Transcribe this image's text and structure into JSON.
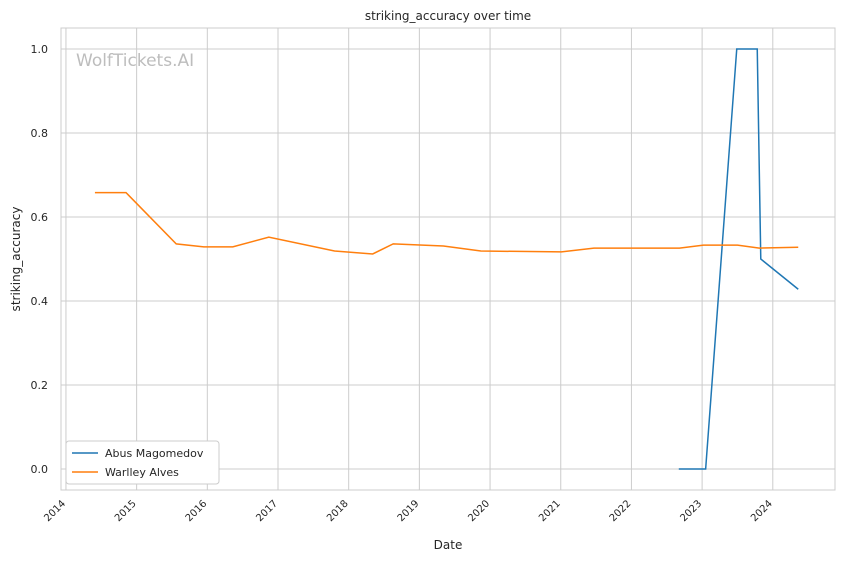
{
  "chart_data": {
    "type": "line",
    "title": "striking_accuracy over time",
    "xlabel": "Date",
    "ylabel": "striking_accuracy",
    "watermark": "WolfTickets.AI",
    "xlim": [
      2013.93,
      2024.88
    ],
    "ylim": [
      -0.05,
      1.05
    ],
    "xticks": [
      "2014",
      "2015",
      "2016",
      "2017",
      "2018",
      "2019",
      "2020",
      "2021",
      "2022",
      "2023",
      "2024"
    ],
    "yticks": [
      "0.0",
      "0.2",
      "0.4",
      "0.6",
      "0.8",
      "1.0"
    ],
    "grid": true,
    "legend_position": "bottom-left",
    "series": [
      {
        "name": "Abus Magomedov",
        "color": "#1f77b4",
        "x": [
          2022.67,
          2023.05,
          2023.49,
          2023.78,
          2023.83,
          2024.36
        ],
        "y": [
          0.0,
          0.0,
          1.0,
          1.0,
          0.5,
          0.428
        ]
      },
      {
        "name": "Warlley Alves",
        "color": "#ff7f0e",
        "x": [
          2014.41,
          2014.85,
          2015.56,
          2015.95,
          2016.36,
          2016.87,
          2017.8,
          2018.34,
          2018.63,
          2019.34,
          2019.87,
          2021.01,
          2021.47,
          2022.68,
          2023.02,
          2023.5,
          2023.81,
          2024.36
        ],
        "y": [
          0.658,
          0.658,
          0.536,
          0.529,
          0.529,
          0.552,
          0.519,
          0.512,
          0.536,
          0.531,
          0.519,
          0.517,
          0.526,
          0.526,
          0.533,
          0.533,
          0.526,
          0.528
        ]
      }
    ]
  }
}
